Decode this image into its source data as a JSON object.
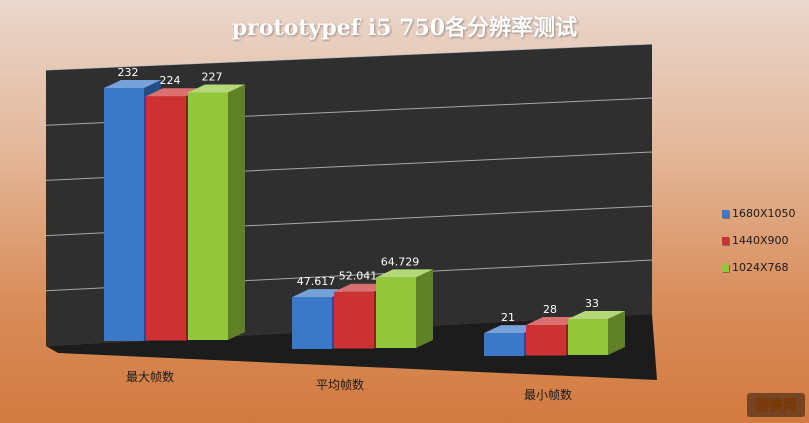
{
  "chart_data": {
    "type": "bar",
    "title": "prototypef  i5 750各分辨率测试",
    "categories": [
      "最大帧数",
      "平均帧数",
      "最小帧数"
    ],
    "series": [
      {
        "name": "1680X1050",
        "values": [
          232,
          47.617,
          21
        ],
        "labels": [
          "232",
          "47.617",
          "21"
        ],
        "color": "#3b78c8"
      },
      {
        "name": "1440X900",
        "values": [
          224,
          52.041,
          28
        ],
        "labels": [
          "224",
          "52.041",
          "28"
        ],
        "color": "#cc3232"
      },
      {
        "name": "1024X768",
        "values": [
          227,
          64.729,
          33
        ],
        "labels": [
          "227",
          "64.729",
          "33"
        ],
        "color": "#94c63c"
      }
    ],
    "ylim": [
      0,
      250
    ],
    "grid": true,
    "legend_position": "right",
    "style": "3d-clustered-column",
    "colors": {
      "wall": "#2f2f2f",
      "floor": "#1c1c1c",
      "gridline": "#cfcfcf"
    }
  },
  "watermark": {
    "label": "游侠网"
  }
}
